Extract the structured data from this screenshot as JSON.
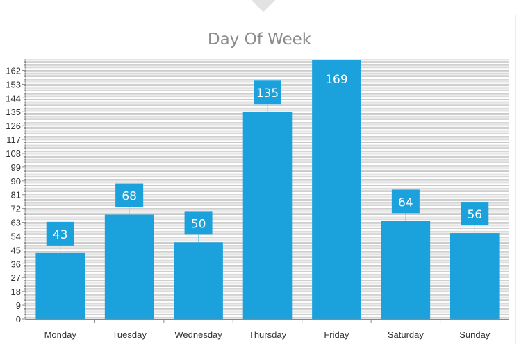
{
  "chart_data": {
    "type": "bar",
    "title": "Day Of Week",
    "xlabel": "",
    "ylabel": "",
    "categories": [
      "Monday",
      "Tuesday",
      "Wednesday",
      "Thursday",
      "Friday",
      "Saturday",
      "Sunday"
    ],
    "values": [
      43,
      68,
      50,
      135,
      169,
      64,
      56
    ],
    "ylim": [
      0,
      169
    ],
    "yticks": [
      0,
      9,
      18,
      27,
      36,
      45,
      54,
      63,
      72,
      81,
      90,
      99,
      108,
      117,
      126,
      135,
      144,
      153,
      162
    ],
    "grid": true,
    "legend": "none",
    "colors": {
      "bar": "#1ba1db",
      "grid": "#c8c8c8",
      "axis": "#8a8a8a",
      "text": "#333333",
      "title": "#8c8c8c"
    }
  }
}
